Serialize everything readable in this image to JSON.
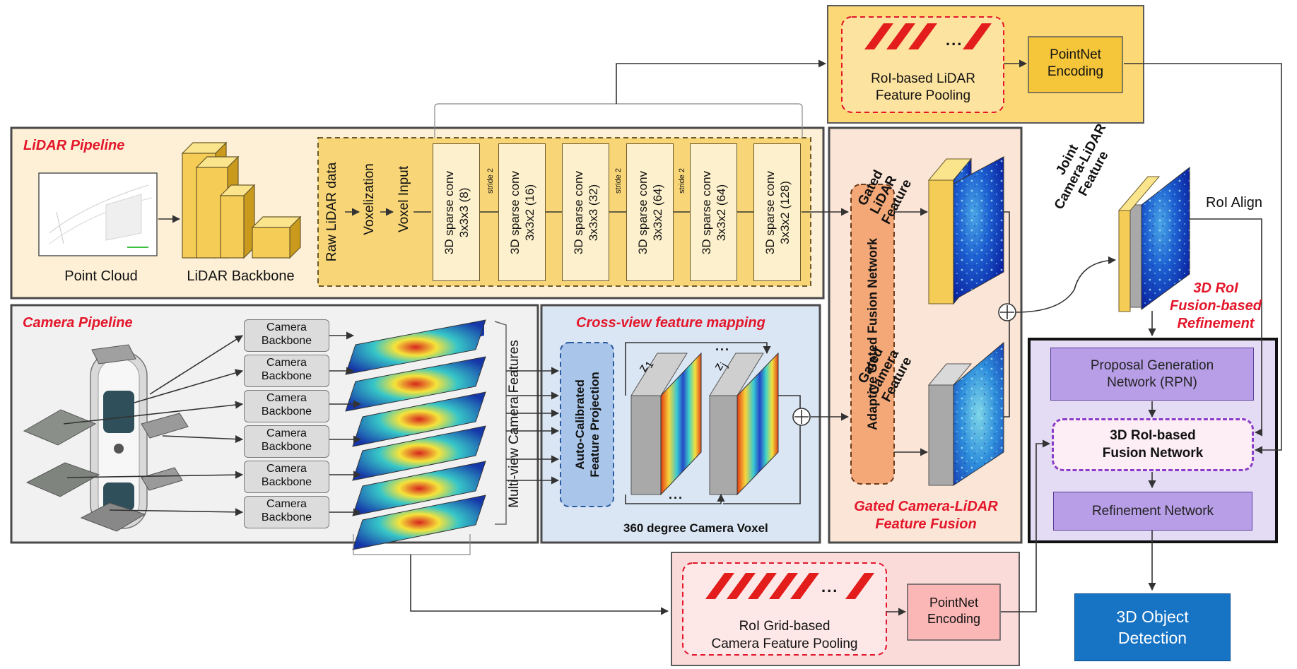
{
  "lidar_pipeline": {
    "title": "LiDAR Pipeline",
    "point_cloud_label": "Point Cloud",
    "backbone_label": "LiDAR Backbone",
    "raw_label": "Raw LiDAR data",
    "voxelization_label": "Voxelization",
    "voxel_input_label": "Voxel Input",
    "convs": [
      {
        "line1": "3D sparse conv",
        "line2": "3x3x3 (8)"
      },
      {
        "line1": "3D sparse conv",
        "line2": "3x3x2 (16)"
      },
      {
        "line1": "3D sparse conv",
        "line2": "3x3x3 (32)"
      },
      {
        "line1": "3D sparse conv",
        "line2": "3x3x2 (64)"
      },
      {
        "line1": "3D sparse conv",
        "line2": "3x3x2 (64)"
      },
      {
        "line1": "3D sparse conv",
        "line2": "3x3x2 (128)"
      }
    ],
    "stride_label": "stride 2"
  },
  "roi_lidar_pooling": {
    "label": "RoI-based LiDAR\nFeature Pooling",
    "ellipsis": "...",
    "encoding_label": "PointNet\nEncoding"
  },
  "camera_pipeline": {
    "title": "Camera Pipeline",
    "backbone_label": "Camera\nBackbone",
    "multiview_label": "Multi-view Camera Features"
  },
  "cross_view": {
    "title": "Cross-view feature mapping",
    "projection_label": "Auto-Calibrated\nFeature Projection",
    "z1_label": "z",
    "z1_sub": "1",
    "zj_label": "z",
    "zj_sub": "j",
    "ellipsis": "...",
    "voxel_label": "360 degree Camera Voxel"
  },
  "gated_fusion": {
    "network_label": "Adaptive Gated Fusion Network",
    "lidar_feature_label": "Gated\nLiDAR\nFeature",
    "camera_feature_label": "Gated\nCamera\nFeature",
    "title": "Gated Camera-LiDAR\nFeature Fusion"
  },
  "refinement": {
    "joint_feature_label": "Joint\nCamera-LiDAR\nFeature",
    "roi_align_label": "RoI Align",
    "title": "3D RoI\nFusion-based\nRefinement",
    "rpn_label": "Proposal Generation\nNetwork (RPN)",
    "fusion_net_label": "3D RoI-based\nFusion Network",
    "refine_net_label": "Refinement Network"
  },
  "roi_camera_pooling": {
    "label": "RoI Grid-based\nCamera Feature Pooling",
    "ellipsis": "...",
    "encoding_label": "PointNet\nEncoding"
  },
  "output": {
    "label": "3D Object\nDetection"
  },
  "colors": {
    "red_accent": "#e3162a",
    "lidar_panel_bg": "#fdf0d6",
    "yellow_block": "#f5cc55",
    "camera_panel_bg": "#f1f1f1",
    "cross_view_bg": "#dbe6f4",
    "gated_panel_bg": "#fbe5d6",
    "refinement_bg": "#e4dbf5",
    "roi_camera_bg": "#fbdada",
    "output_blue": "#1773c4"
  }
}
